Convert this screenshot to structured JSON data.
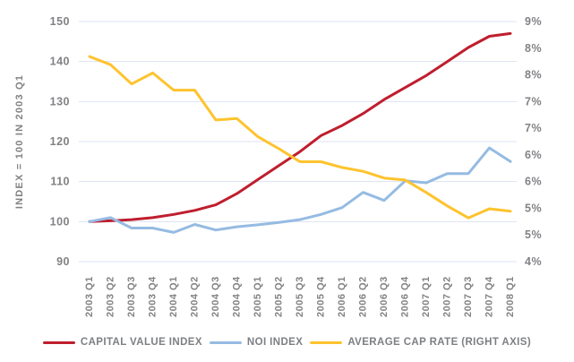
{
  "chart_data": {
    "type": "line",
    "title": "",
    "categories": [
      "2003 Q1",
      "2003 Q2",
      "2003 Q3",
      "2003 Q4",
      "2004 Q1",
      "2004 Q2",
      "2004 Q3",
      "2004 Q4",
      "2005 Q1",
      "2005 Q2",
      "2005 Q3",
      "2005 Q4",
      "2006 Q1",
      "2006 Q2",
      "2006 Q3",
      "2006 Q4",
      "2007 Q1",
      "2007 Q2",
      "2007 Q3",
      "2007 Q4",
      "2008 Q1"
    ],
    "series": [
      {
        "name": "CAPITAL VALUE INDEX",
        "axis": "left",
        "color": "#bf1e2e",
        "values": [
          100,
          100.2,
          100.5,
          101,
          101.8,
          102.8,
          104.2,
          107,
          110.5,
          114,
          117.5,
          121.5,
          124,
          127,
          130.5,
          133.5,
          136.5,
          140,
          143.5,
          146.3,
          147
        ]
      },
      {
        "name": "NOI INDEX",
        "axis": "left",
        "color": "#95bbe2",
        "values": [
          100,
          101,
          98.4,
          98.4,
          97.3,
          99.3,
          97.9,
          98.7,
          99.2,
          99.8,
          100.5,
          101.8,
          103.5,
          107.3,
          105.3,
          110.2,
          109.7,
          112,
          112,
          118.4,
          115
        ]
      },
      {
        "name": "AVERAGE CAP RATE (RIGHT AXIS)",
        "axis": "right",
        "color": "#fec32d",
        "values": [
          8.27,
          8.1,
          7.7,
          7.93,
          7.57,
          7.57,
          6.95,
          6.98,
          6.6,
          6.35,
          6.08,
          6.08,
          5.96,
          5.88,
          5.74,
          5.7,
          5.44,
          5.16,
          4.91,
          5.1,
          5.05
        ]
      }
    ],
    "left_axis": {
      "title": "INDEX = 100 IN 2003 Q1",
      "min": 90,
      "max": 150,
      "tick_labels": [
        "150",
        "140",
        "130",
        "120",
        "110",
        "100",
        "90"
      ]
    },
    "right_axis": {
      "min": 4,
      "max": 9,
      "tick_labels": [
        "9%",
        "8%",
        "8%",
        "7%",
        "7%",
        "6%",
        "6%",
        "5%",
        "5%",
        "4%"
      ]
    },
    "grid": "horizontal",
    "gridline_color": "#dce3f3",
    "tick_label_color": "#818285",
    "legend_position": "bottom",
    "legend_text_color": "#7d7f82"
  }
}
